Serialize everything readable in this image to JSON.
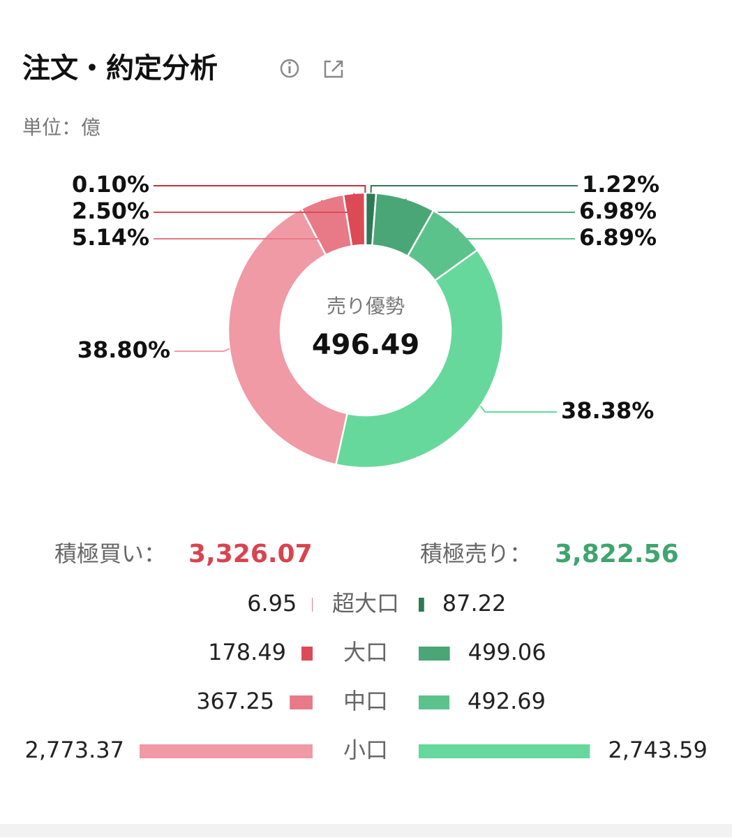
{
  "header": {
    "title": "注文・約定分析",
    "unit": "単位：億"
  },
  "chart_data": {
    "type": "pie",
    "donut": true,
    "values": [
      1.22,
      6.98,
      6.89,
      38.38,
      38.8,
      5.14,
      2.5,
      0.1
    ],
    "value_labels": [
      "1.22%",
      "6.98%",
      "6.89%",
      "38.38%",
      "38.80%",
      "5.14%",
      "2.50%",
      "0.10%"
    ],
    "colors": [
      "#2e7a55",
      "#4aa577",
      "#5cc28b",
      "#66d89b",
      "#f09aa6",
      "#e87a87",
      "#dc4a56",
      "#c92f3b"
    ],
    "center_label": "売り優勢",
    "center_value": 496.49
  },
  "summary": {
    "buy_label": "積極買い：",
    "buy_value": "3,326.07",
    "sell_label": "積極売り：",
    "sell_value": "3,822.56"
  },
  "table": {
    "rows": [
      "超大口",
      "大口",
      "中口",
      "小口"
    ],
    "buy": [
      6.95,
      178.49,
      367.25,
      2773.37
    ],
    "buy_labels": [
      "6.95",
      "178.49",
      "367.25",
      "2,773.37"
    ],
    "sell": [
      87.22,
      499.06,
      492.69,
      2743.59
    ],
    "sell_labels": [
      "87.22",
      "499.06",
      "492.69",
      "2,743.59"
    ],
    "buy_colors": [
      "#c92f3b",
      "#dc4a56",
      "#e87a87",
      "#f09aa6"
    ],
    "sell_colors": [
      "#2e7a55",
      "#4aa577",
      "#5cc28b",
      "#66d89b"
    ]
  }
}
